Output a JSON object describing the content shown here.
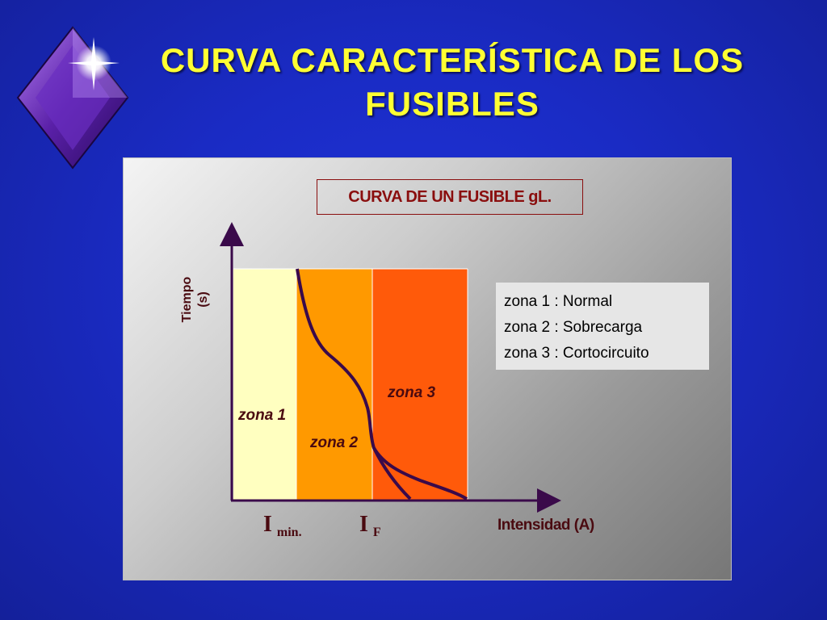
{
  "slide": {
    "title_line1": "CURVA CARACTERÍSTICA DE LOS",
    "title_line2": "FUSIBLES"
  },
  "chart": {
    "title": "CURVA DE UN FUSIBLE gL.",
    "ylabel_line1": "Tiempo",
    "ylabel_line2": "(s)",
    "xlabel": "Intensidad (A)",
    "zones": [
      {
        "label": "zona 1",
        "color": "#ffffc0"
      },
      {
        "label": "zona 2",
        "color": "#ff9900"
      },
      {
        "label": "zona 3",
        "color": "#ff5a0a"
      }
    ],
    "x_markers": [
      {
        "main": "I",
        "sub": "min."
      },
      {
        "main": "I",
        "sub": "F"
      }
    ],
    "legend": [
      "zona 1 : Normal",
      "zona 2 : Sobrecarga",
      "zona 3 : Cortocircuito"
    ],
    "curve_color": "#3a0a4a"
  }
}
